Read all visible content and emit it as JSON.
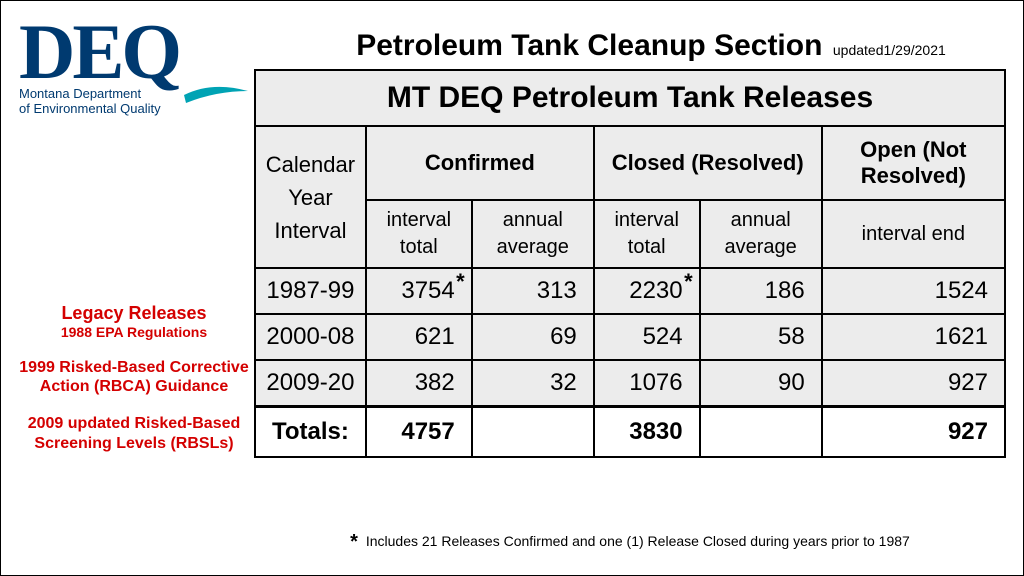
{
  "logo": {
    "acronym": "DEQ",
    "line1": "Montana Department",
    "line2": "of Environmental Quality",
    "brand_color": "#003a70",
    "swoosh_color": "#00a3b4"
  },
  "header": {
    "title": "Petroleum Tank Cleanup Section",
    "updated": "updated1/29/2021"
  },
  "table": {
    "title": "MT DEQ Petroleum Tank Releases",
    "col_cal": "Calendar\nYear\nInterval",
    "grp_confirmed": "Confirmed",
    "grp_closed": "Closed (Resolved)",
    "grp_open": "Open (Not Resolved)",
    "sub_interval_total": "interval total",
    "sub_annual_avg": "annual average",
    "sub_interval_end": "interval end",
    "rows": [
      {
        "period": "1987-99",
        "conf_total": "3754",
        "conf_star": true,
        "conf_avg": "313",
        "closed_total": "2230",
        "closed_star": true,
        "closed_avg": "186",
        "open_end": "1524"
      },
      {
        "period": "2000-08",
        "conf_total": "621",
        "conf_star": false,
        "conf_avg": "69",
        "closed_total": "524",
        "closed_star": false,
        "closed_avg": "58",
        "open_end": "1621"
      },
      {
        "period": "2009-20",
        "conf_total": "382",
        "conf_star": false,
        "conf_avg": "32",
        "closed_total": "1076",
        "closed_star": false,
        "closed_avg": "90",
        "open_end": "927"
      }
    ],
    "totals": {
      "label": "Totals:",
      "conf_total": "4757",
      "closed_total": "3830",
      "open_end": "927"
    },
    "bg_color": "#ececec",
    "border_color": "#000000"
  },
  "annotations": [
    {
      "line1": "Legacy Releases",
      "line2": "1988 EPA Regulations"
    },
    {
      "multi": "1999 Risked-Based Corrective Action (RBCA) Guidance"
    },
    {
      "multi": "2009 updated Risked-Based Screening Levels (RBSLs)"
    }
  ],
  "footnote": {
    "star": "*",
    "text": "Includes 21 Releases Confirmed and one (1) Release Closed during years prior to 1987"
  },
  "colors": {
    "annotation_red": "#d40000"
  }
}
